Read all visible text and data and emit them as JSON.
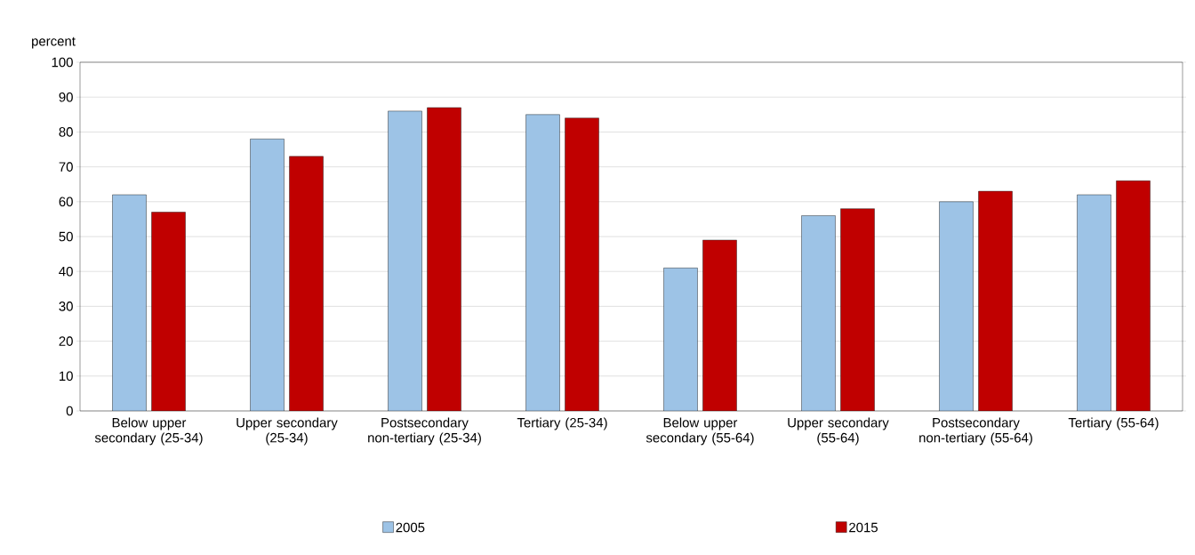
{
  "chart_data": {
    "type": "bar",
    "ylabel": "percent",
    "categories": [
      "Below upper secondary (25-34)",
      "Upper secondary (25-34)",
      "Postsecondary non-tertiary (25-34)",
      "Tertiary (25-34)",
      "Below upper secondary (55-64)",
      "Upper secondary (55-64)",
      "Postsecondary non-tertiary (55-64)",
      "Tertiary (55-64)"
    ],
    "series": [
      {
        "name": "2005",
        "color": "#9dc3e6",
        "values": [
          62,
          78,
          86,
          85,
          41,
          56,
          60,
          62
        ]
      },
      {
        "name": "2015",
        "color": "#c00000",
        "values": [
          57,
          73,
          87,
          84,
          49,
          58,
          63,
          66
        ]
      }
    ],
    "ylim": [
      0,
      100
    ],
    "yticks": [
      0,
      10,
      20,
      30,
      40,
      50,
      60,
      70,
      80,
      90,
      100
    ],
    "grid": "y",
    "legend": "bottom"
  }
}
